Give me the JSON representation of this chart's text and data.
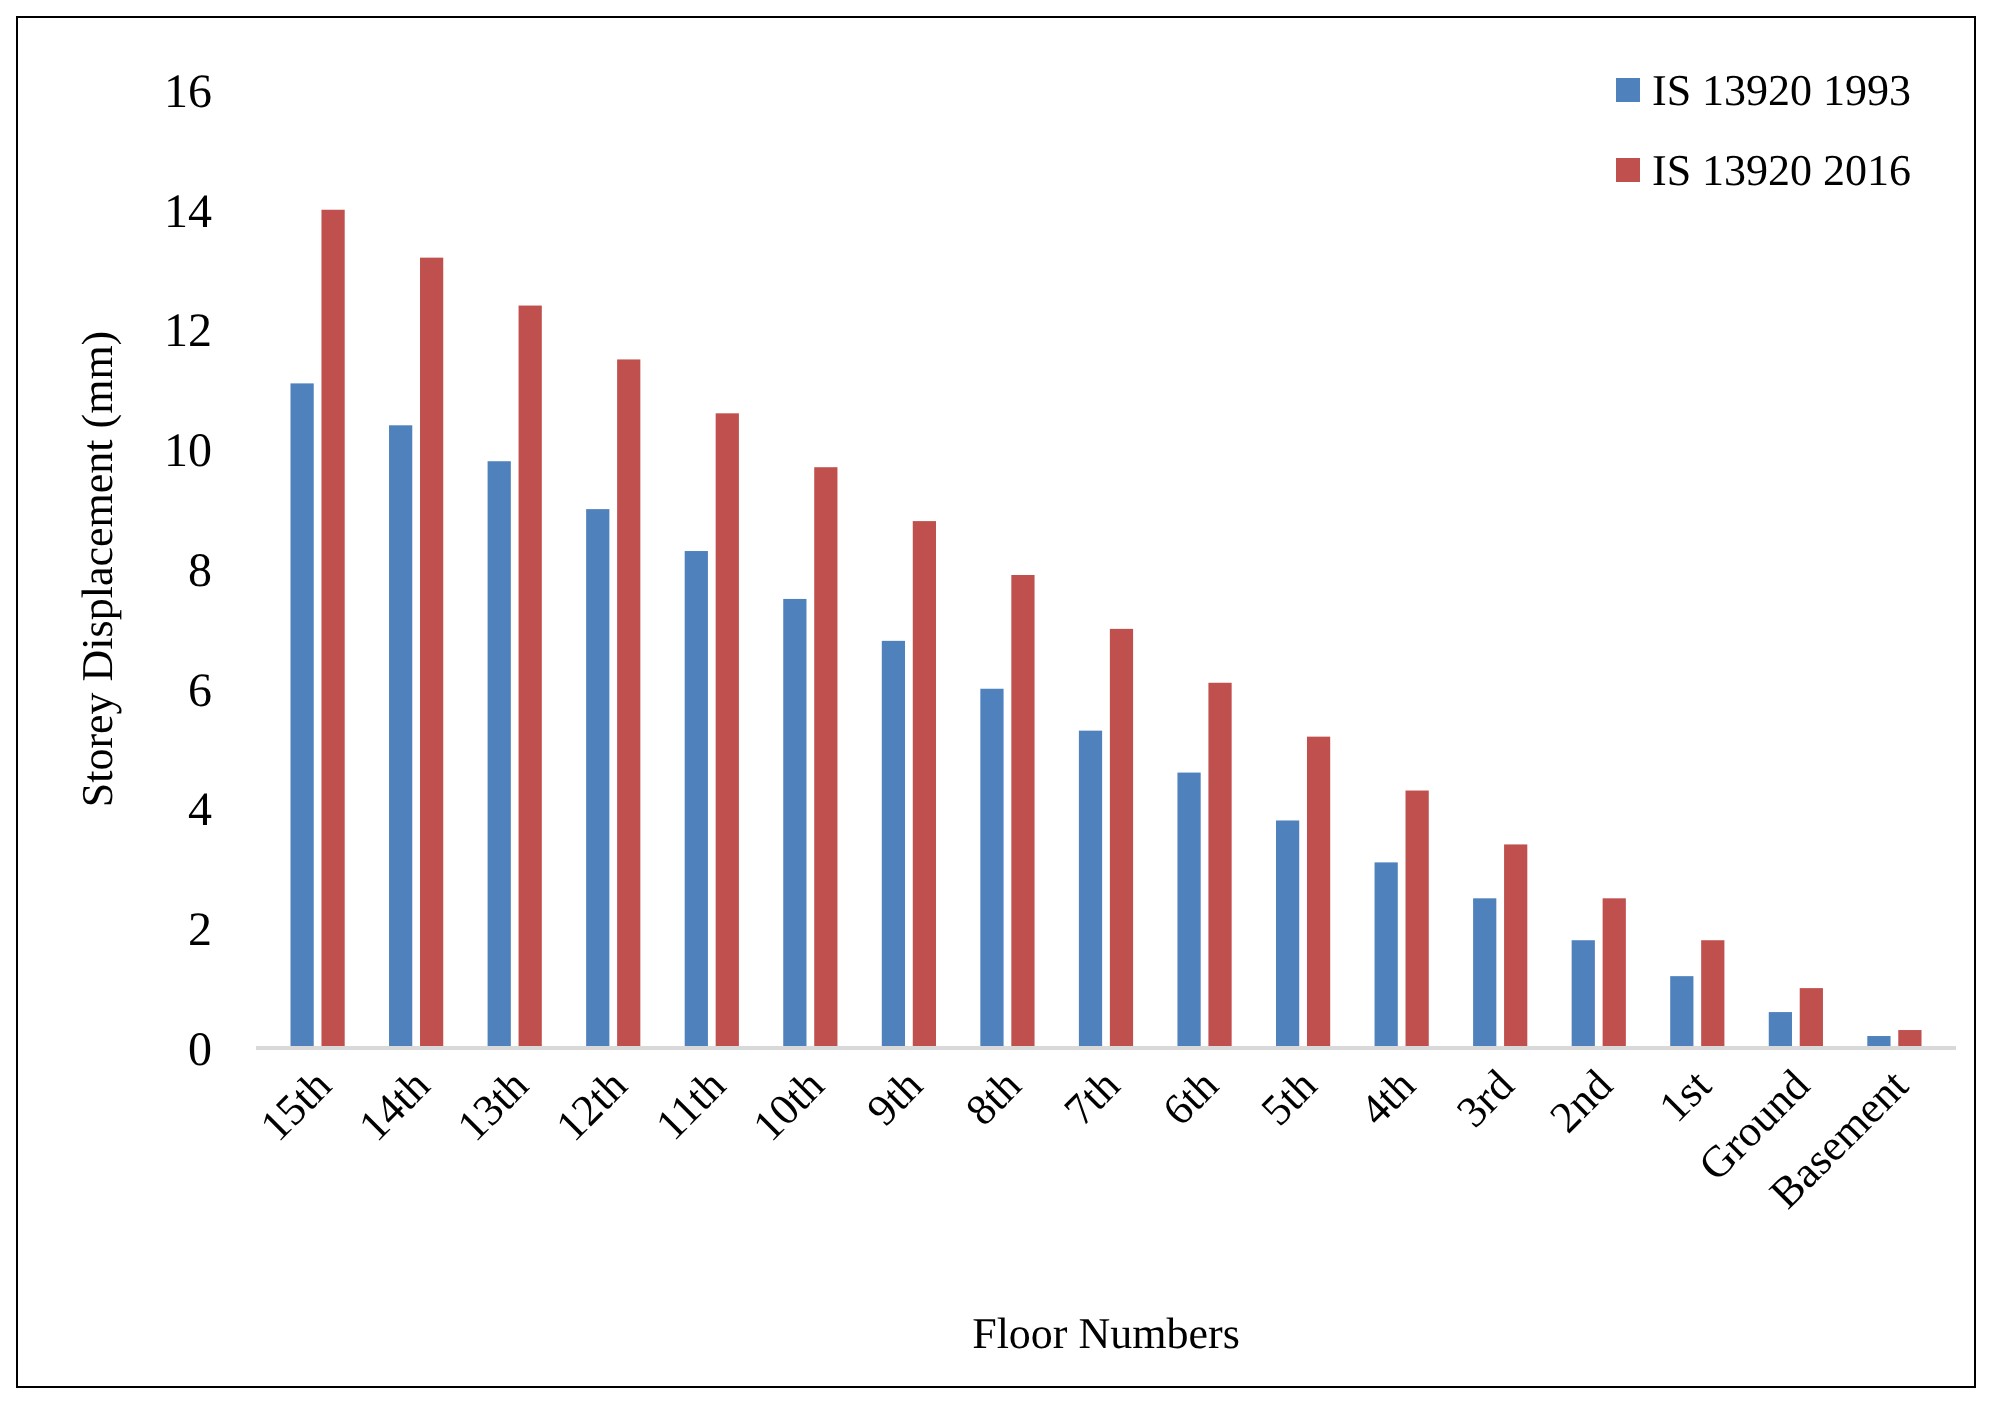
{
  "chart_data": {
    "type": "bar",
    "xlabel": "Floor Numbers",
    "ylabel": "Storey Displacement (mm)",
    "categories": [
      "15th",
      "14th",
      "13th",
      "12th",
      "11th",
      "10th",
      "9th",
      "8th",
      "7th",
      "6th",
      "5th",
      "4th",
      "3rd",
      "2nd",
      "1st",
      "Ground",
      "Basement"
    ],
    "series": [
      {
        "name": "IS 13920 1993",
        "color": "#4f81bd",
        "values": [
          11.1,
          10.4,
          9.8,
          9.0,
          8.3,
          7.5,
          6.8,
          6.0,
          5.3,
          4.6,
          3.8,
          3.1,
          2.5,
          1.8,
          1.2,
          0.6,
          0.2
        ]
      },
      {
        "name": "IS 13920 2016",
        "color": "#c0504d",
        "values": [
          14.0,
          13.2,
          12.4,
          11.5,
          10.6,
          9.7,
          8.8,
          7.9,
          7.0,
          6.1,
          5.2,
          4.3,
          3.4,
          2.5,
          1.8,
          1.0,
          0.3
        ]
      }
    ],
    "ylim": [
      0,
      16
    ],
    "yticks": [
      0,
      2,
      4,
      6,
      8,
      10,
      12,
      14,
      16
    ],
    "grid": false,
    "legend": "top right"
  }
}
